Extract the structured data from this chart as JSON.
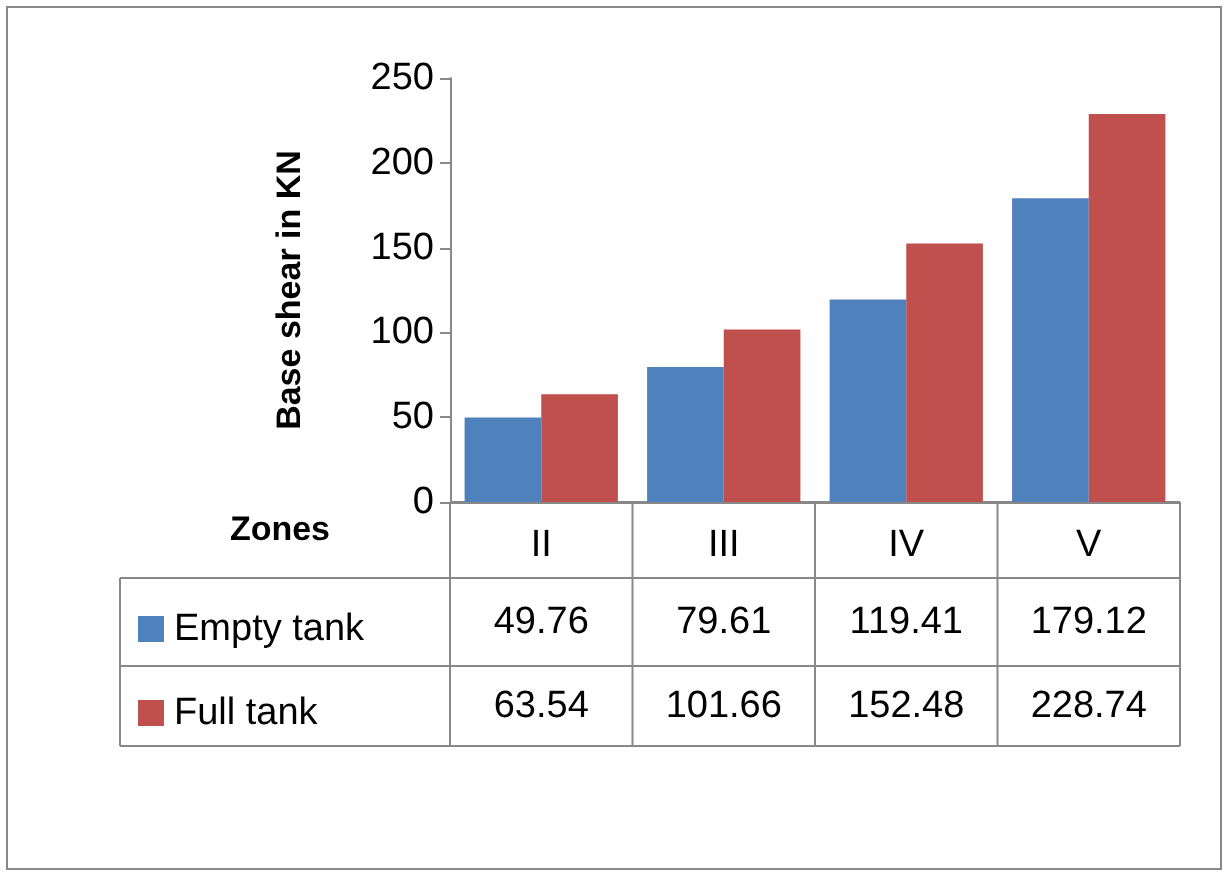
{
  "chart_data": {
    "type": "bar",
    "ylabel": "Base shear in KN",
    "xlabel": "Zones",
    "categories": [
      "II",
      "III",
      "IV",
      "V"
    ],
    "series": [
      {
        "name": "Empty tank",
        "color": "#4f81bd",
        "values": [
          49.76,
          79.61,
          119.41,
          179.12
        ]
      },
      {
        "name": "Full tank",
        "color": "#c0504d",
        "values": [
          63.54,
          101.66,
          152.48,
          228.74
        ]
      }
    ],
    "ylim": [
      0,
      250
    ],
    "yticks": [
      0,
      50,
      100,
      150,
      200,
      250
    ],
    "grid": false,
    "legend": "bottom",
    "data_labels": true
  }
}
